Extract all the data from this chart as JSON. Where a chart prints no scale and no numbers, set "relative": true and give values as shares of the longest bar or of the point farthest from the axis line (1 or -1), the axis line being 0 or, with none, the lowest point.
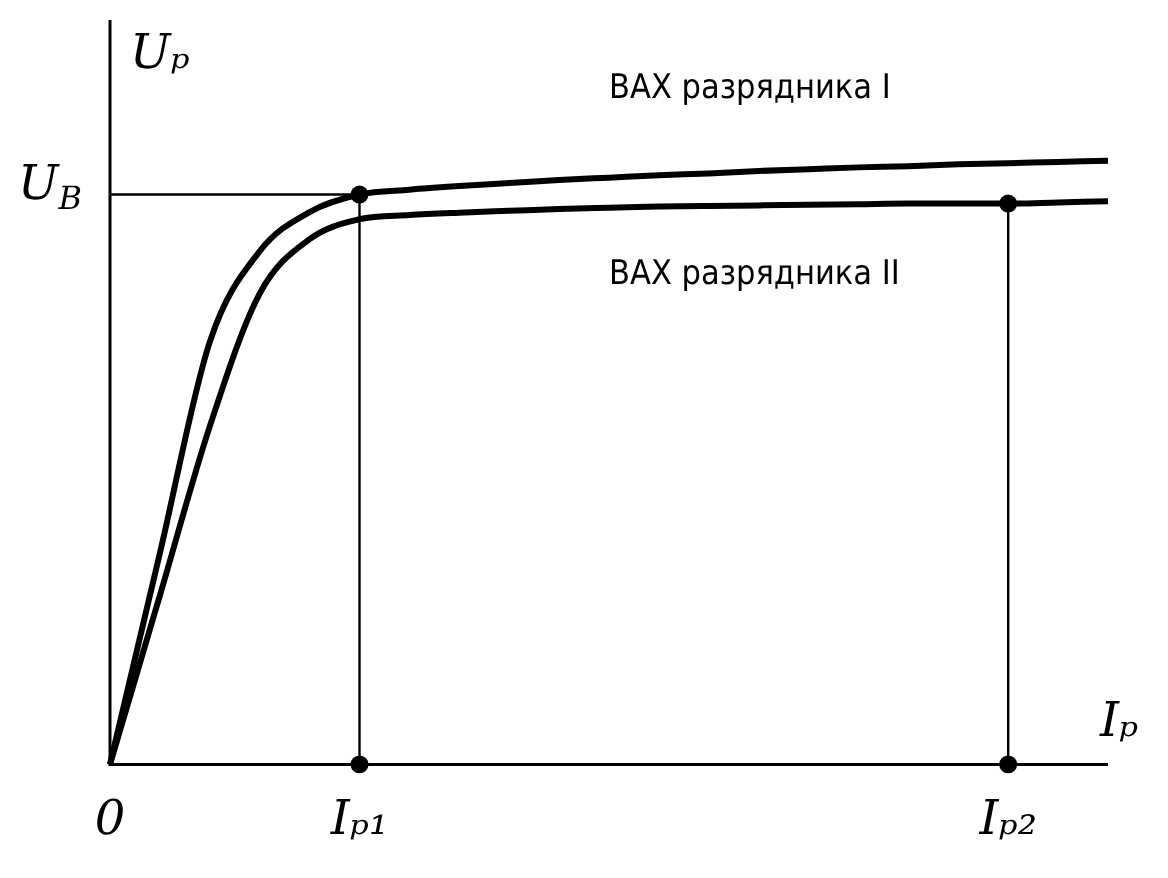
{
  "chart_data": {
    "type": "line",
    "relative": true,
    "xlabel": "Iₚ",
    "ylabel": "Uₚ",
    "categories": [
      "0",
      null,
      null,
      null,
      null,
      "Iₚ₁",
      null,
      null,
      null,
      null,
      null,
      null,
      null,
      null,
      null,
      null,
      null,
      null,
      "Iₚ₂",
      null,
      null
    ],
    "series": [
      {
        "name": "ВАХ разрядника I",
        "color": "#000000",
        "marker": "none",
        "values": [
          0,
          0.35,
          0.7,
          0.85,
          0.915,
          0.944,
          0.952,
          0.958,
          0.963,
          0.968,
          0.972,
          0.976,
          0.979,
          0.983,
          0.986,
          0.989,
          0.991,
          0.994,
          0.996,
          0.998,
          1
        ]
      },
      {
        "name": "ВАХ разрядника II",
        "color": "#000000",
        "marker": "none",
        "values": [
          0,
          0.28,
          0.56,
          0.78,
          0.87,
          0.903,
          0.91,
          0.914,
          0.917,
          0.92,
          0.922,
          0.924,
          0.925,
          0.926,
          0.927,
          0.928,
          0.929,
          0.929,
          0.929,
          0.931,
          0.933
        ]
      },
      {
        "type": "scatter",
        "color": "#000000",
        "marker": "circle",
        "x": [
          "Iₚ₁",
          "Iₚ₁",
          "Iₚ₂",
          "Iₚ₂"
        ],
        "values": [
          0.944,
          0,
          0.929,
          0
        ]
      }
    ],
    "ref_lines": [
      {
        "axis": "y",
        "value": 0.944,
        "label": "U$_{В}$"
      },
      {
        "axis": "x",
        "value": "Iₚ₁"
      },
      {
        "axis": "x",
        "value": "Iₚ₂"
      }
    ],
    "grid": false,
    "legend": false
  }
}
